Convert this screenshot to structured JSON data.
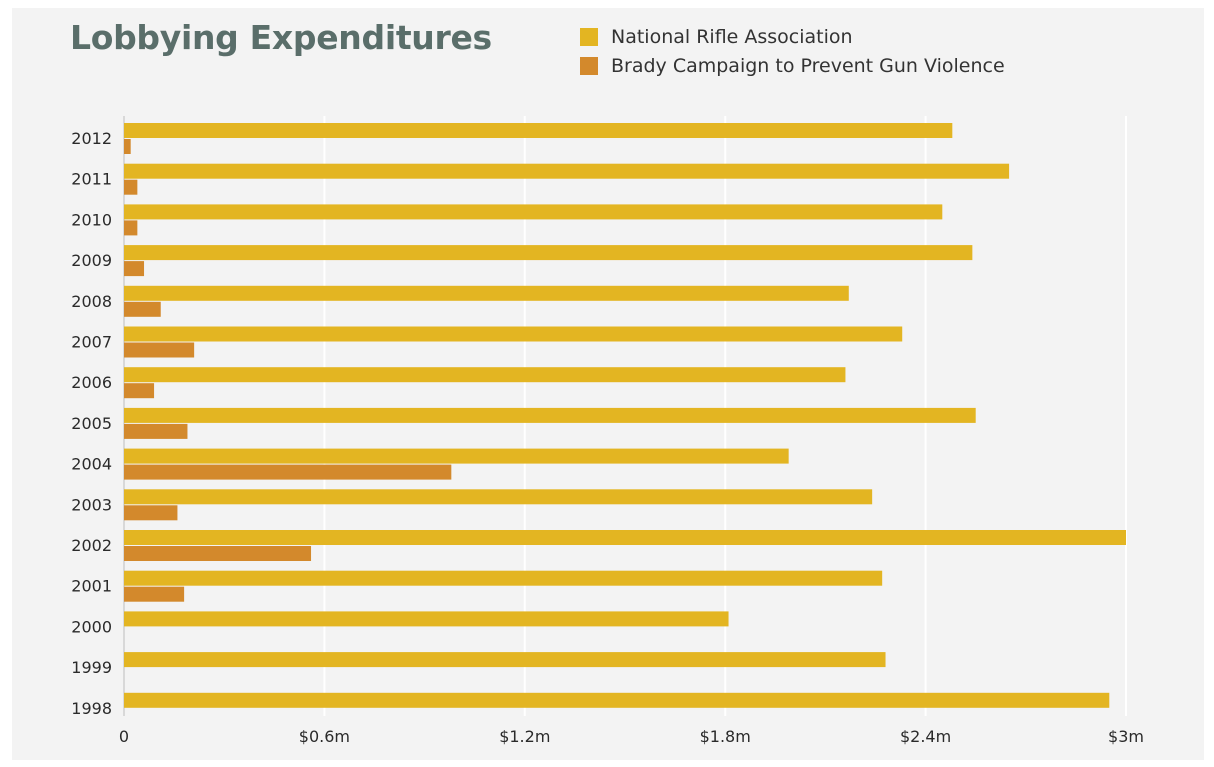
{
  "chart_data": {
    "type": "bar",
    "orientation": "horizontal",
    "title": "Lobbying Expenditures",
    "categories": [
      "2012",
      "2011",
      "2010",
      "2009",
      "2008",
      "2007",
      "2006",
      "2005",
      "2004",
      "2003",
      "2002",
      "2001",
      "2000",
      "1999",
      "1998"
    ],
    "series": [
      {
        "name": "National Rifle Association",
        "color": "#e3b522",
        "values": [
          2.48,
          2.65,
          2.45,
          2.54,
          2.17,
          2.33,
          2.16,
          2.55,
          1.99,
          2.24,
          3.0,
          2.27,
          1.81,
          2.28,
          2.95
        ]
      },
      {
        "name": "Brady Campaign to Prevent Gun Violence",
        "color": "#d3892c",
        "values": [
          0.02,
          0.04,
          0.04,
          0.06,
          0.11,
          0.21,
          0.09,
          0.19,
          0.98,
          0.16,
          0.56,
          0.18,
          null,
          null,
          null
        ]
      }
    ],
    "xlim": [
      0,
      3
    ],
    "xticks": [
      0,
      0.6,
      1.2,
      1.8,
      2.4,
      3
    ],
    "xtick_labels": [
      "0",
      "$0.6m",
      "$1.2m",
      "$1.8m",
      "$2.4m",
      "$3m"
    ],
    "xlabel": "",
    "ylabel": "",
    "grid": true,
    "legend_position": "top-right"
  }
}
